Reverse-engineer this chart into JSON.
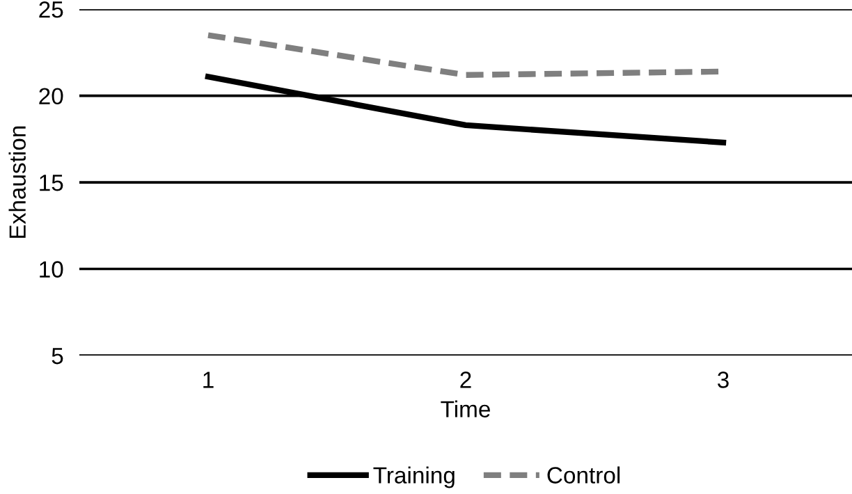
{
  "chart_data": {
    "type": "line",
    "xlabel": "Time",
    "ylabel": "Exhaustion",
    "categories": [
      "1",
      "2",
      "3"
    ],
    "series": [
      {
        "name": "Training",
        "color": "#000000",
        "values": [
          21.1,
          18.3,
          17.3
        ],
        "line_style": "solid"
      },
      {
        "name": "Control",
        "color": "#7f7f7f",
        "values": [
          23.5,
          21.2,
          21.4
        ],
        "line_style": "dashed"
      }
    ],
    "ylim": [
      5,
      25
    ],
    "yticks": [
      5,
      10,
      15,
      20,
      25
    ],
    "grid": "y",
    "legend": "bottom"
  }
}
